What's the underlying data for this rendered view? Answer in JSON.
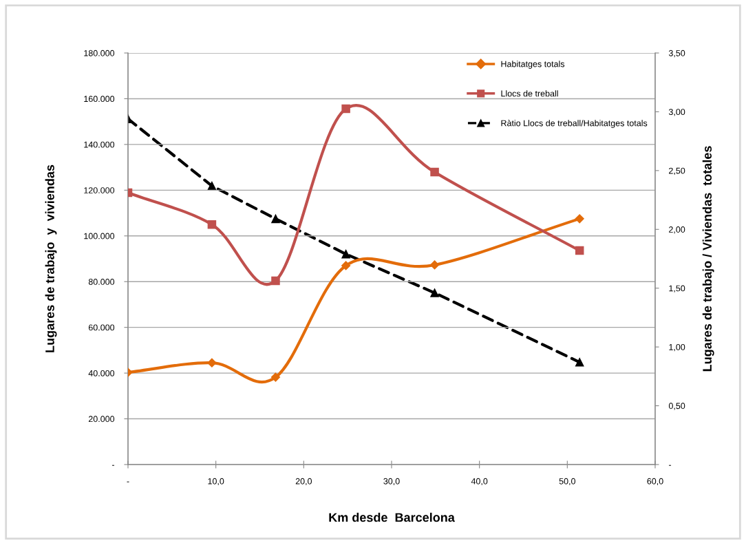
{
  "chart_data": {
    "type": "line",
    "xlabel": "Km desde  Barcelona",
    "ylabel": "Lugares de trabajo  y  viviendas",
    "y2label": "Lugares de trabajo / Viviendas  totales",
    "x": [
      0,
      9.55,
      16.8,
      24.8,
      34.9,
      51.4
    ],
    "series": [
      {
        "name": "Habitatges totals",
        "color": "#e36c0a",
        "marker": "diamond",
        "line_style": "solid",
        "values": [
          40300,
          44500,
          38200,
          87000,
          87300,
          107500
        ]
      },
      {
        "name": "Llocs de treball",
        "color": "#c0504d",
        "marker": "square",
        "line_style": "solid",
        "values": [
          118900,
          105000,
          80400,
          155600,
          127900,
          93600
        ]
      },
      {
        "name": "Ràtio Llocs de treball/Habitatges totals",
        "color": "#000000",
        "marker": "triangle",
        "line_style": "dashed",
        "axis": "y2",
        "values": [
          2.94,
          2.37,
          2.09,
          1.79,
          1.46,
          0.87
        ]
      }
    ],
    "xlim": [
      0,
      60
    ],
    "xticks": [
      {
        "value": 0,
        "label": "-"
      },
      {
        "value": 10,
        "label": "10,0"
      },
      {
        "value": 20,
        "label": "20,0"
      },
      {
        "value": 30,
        "label": "30,0"
      },
      {
        "value": 40,
        "label": "40,0"
      },
      {
        "value": 50,
        "label": "50,0"
      },
      {
        "value": 60,
        "label": "60,0"
      }
    ],
    "ylim": [
      0,
      180000
    ],
    "yticks": [
      {
        "value": 0,
        "label": "-"
      },
      {
        "value": 20000,
        "label": "20.000"
      },
      {
        "value": 40000,
        "label": "40.000"
      },
      {
        "value": 60000,
        "label": "60.000"
      },
      {
        "value": 80000,
        "label": "80.000"
      },
      {
        "value": 100000,
        "label": "100.000"
      },
      {
        "value": 120000,
        "label": "120.000"
      },
      {
        "value": 140000,
        "label": "140.000"
      },
      {
        "value": 160000,
        "label": "160.000"
      },
      {
        "value": 180000,
        "label": "180.000"
      }
    ],
    "y2lim": [
      0,
      3.5
    ],
    "y2ticks": [
      {
        "value": 0,
        "label": "-"
      },
      {
        "value": 0.5,
        "label": "0,50"
      },
      {
        "value": 1,
        "label": "1,00"
      },
      {
        "value": 1.5,
        "label": "1,50"
      },
      {
        "value": 2,
        "label": "2,00"
      },
      {
        "value": 2.5,
        "label": "2,50"
      },
      {
        "value": 3,
        "label": "3,00"
      },
      {
        "value": 3.5,
        "label": "3,50"
      }
    ],
    "grid": "y",
    "legend": "top right"
  }
}
